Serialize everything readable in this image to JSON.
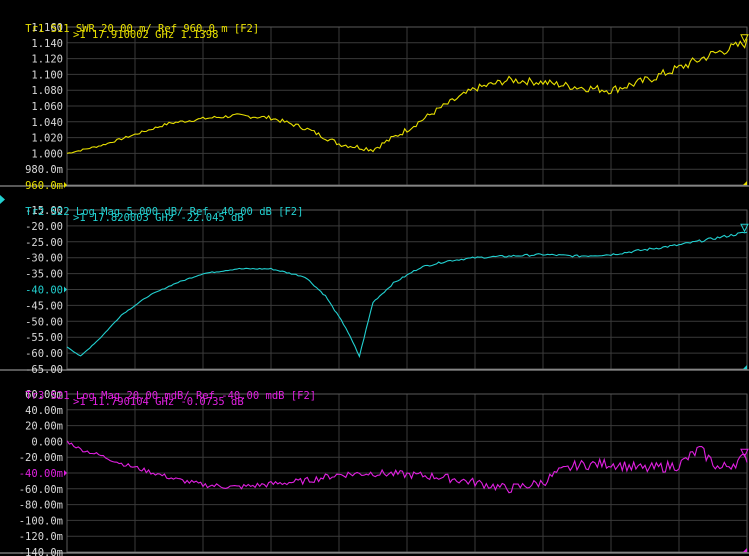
{
  "screen": {
    "background": "#000000",
    "grid_color": "#3a3a3a",
    "sep_color": "#b0b0b0"
  },
  "chart_data": [
    {
      "type": "line",
      "trace": "Tr1",
      "param": "S11",
      "format": "SWR",
      "header": "Tr1 S11 SWR 20.00 m/ Ref 960.0 m [F2]",
      "color": "#e8e000",
      "y_ticks": [
        "1.160",
        "1.140",
        "1.120",
        "1.100",
        "1.080",
        "1.060",
        "1.040",
        "1.020",
        "1.000",
        "980.0m",
        "960.0m"
      ],
      "ylim": [
        0.96,
        1.16
      ],
      "ref_tick": "960.0m",
      "marker": {
        "label": ">1",
        "freq": "17.910002 GHz",
        "value": "1.1398"
      },
      "series": [
        {
          "x": [
            0,
            0.05,
            0.1,
            0.15,
            0.2,
            0.25,
            0.3,
            0.35,
            0.4,
            0.45,
            0.5,
            0.55,
            0.6,
            0.65,
            0.7,
            0.75,
            0.8,
            0.85,
            0.9,
            0.95,
            1.0
          ],
          "values": [
            1.0,
            1.01,
            1.024,
            1.038,
            1.044,
            1.048,
            1.045,
            1.032,
            1.012,
            1.005,
            1.03,
            1.058,
            1.082,
            1.093,
            1.09,
            1.084,
            1.08,
            1.092,
            1.108,
            1.126,
            1.14
          ]
        }
      ]
    },
    {
      "type": "line",
      "trace": "Tr2",
      "param": "S22",
      "format": "Log Mag",
      "header": "Tr2 S22 Log Mag 5.000 dB/ Ref -40.00 dB [F2]",
      "color": "#22d0d0",
      "y_ticks": [
        "-15.00",
        "-20.00",
        "-25.00",
        "-30.00",
        "-35.00",
        "-40.00",
        "-45.00",
        "-50.00",
        "-55.00",
        "-60.00",
        "-65.00"
      ],
      "ylim": [
        -65,
        -15
      ],
      "ref_tick": "-40.00",
      "marker": {
        "label": ">1",
        "freq": "17.820003 GHz",
        "value": "-22.045 dB"
      },
      "series": [
        {
          "x": [
            0,
            0.02,
            0.05,
            0.08,
            0.12,
            0.16,
            0.2,
            0.25,
            0.3,
            0.35,
            0.38,
            0.41,
            0.43,
            0.45,
            0.48,
            0.52,
            0.56,
            0.6,
            0.65,
            0.7,
            0.75,
            0.8,
            0.85,
            0.9,
            0.95,
            1.0
          ],
          "values": [
            -58,
            -61,
            -55,
            -48,
            -42,
            -38,
            -35,
            -33.5,
            -33.5,
            -36,
            -42,
            -52,
            -61,
            -44,
            -38,
            -33,
            -31,
            -30,
            -29.5,
            -29,
            -29.5,
            -29,
            -27.5,
            -26,
            -24,
            -22
          ]
        }
      ]
    },
    {
      "type": "line",
      "trace": "Tr3",
      "param": "S21",
      "format": "Log Mag",
      "header": "Tr3 S21 Log Mag 20.00 mdB/ Ref -40.00 mdB [F2]",
      "color": "#e020e0",
      "y_ticks": [
        "60.00m",
        "40.00m",
        "20.00m",
        "0.000",
        "-20.00m",
        "-40.00m",
        "-60.00m",
        "-80.00m",
        "-100.0m",
        "-120.0m",
        "-140.0m"
      ],
      "ylim": [
        -140,
        60
      ],
      "ref_tick": "-40.00m",
      "marker": {
        "label": ">1",
        "freq": "11.790104 GHz",
        "value": "-0.0735 dB"
      },
      "series": [
        {
          "x": [
            0,
            0.02,
            0.05,
            0.08,
            0.12,
            0.16,
            0.2,
            0.25,
            0.3,
            0.35,
            0.4,
            0.45,
            0.5,
            0.55,
            0.6,
            0.65,
            0.7,
            0.72,
            0.75,
            0.8,
            0.85,
            0.9,
            0.93,
            0.96,
            1.0
          ],
          "values": [
            0,
            -10,
            -18,
            -28,
            -38,
            -48,
            -55,
            -58,
            -54,
            -50,
            -42,
            -40,
            -42,
            -45,
            -52,
            -60,
            -52,
            -40,
            -30,
            -28,
            -35,
            -30,
            -10,
            -35,
            -20
          ]
        }
      ]
    }
  ]
}
